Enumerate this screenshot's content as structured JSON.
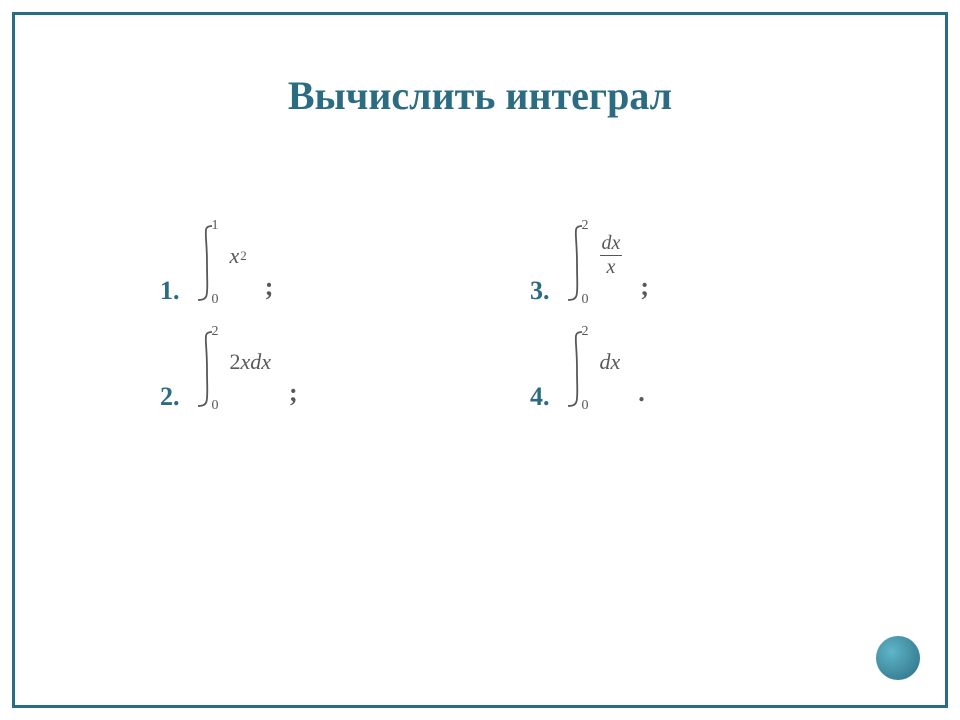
{
  "title": "Вычислить интеграл",
  "title_color": "#2b6c82",
  "title_fontsize": 40,
  "border_color": "#2b6c82",
  "math_color": "#585858",
  "number_color": "#2b6c82",
  "circle_gradient_from": "#5fb5c9",
  "circle_gradient_to": "#2b6c82",
  "problems": [
    {
      "n": "1.",
      "upper": "1",
      "lower": "0",
      "integrand_html": "x<span class='sup'>2</span>",
      "term": ";"
    },
    {
      "n": "3.",
      "upper": "2",
      "lower": "0",
      "integrand_html": "<span class='frac'><span class='fnum'>dx</span><span class='fbar'></span><span class='fden'>x</span></span>",
      "term": ";"
    },
    {
      "n": "2.",
      "upper": "2",
      "lower": "0",
      "integrand_html": "<span class='upright'>2</span>xdx",
      "term": ";"
    },
    {
      "n": "4.",
      "upper": "2",
      "lower": "0",
      "integrand_html": "dx",
      "term": "."
    }
  ]
}
